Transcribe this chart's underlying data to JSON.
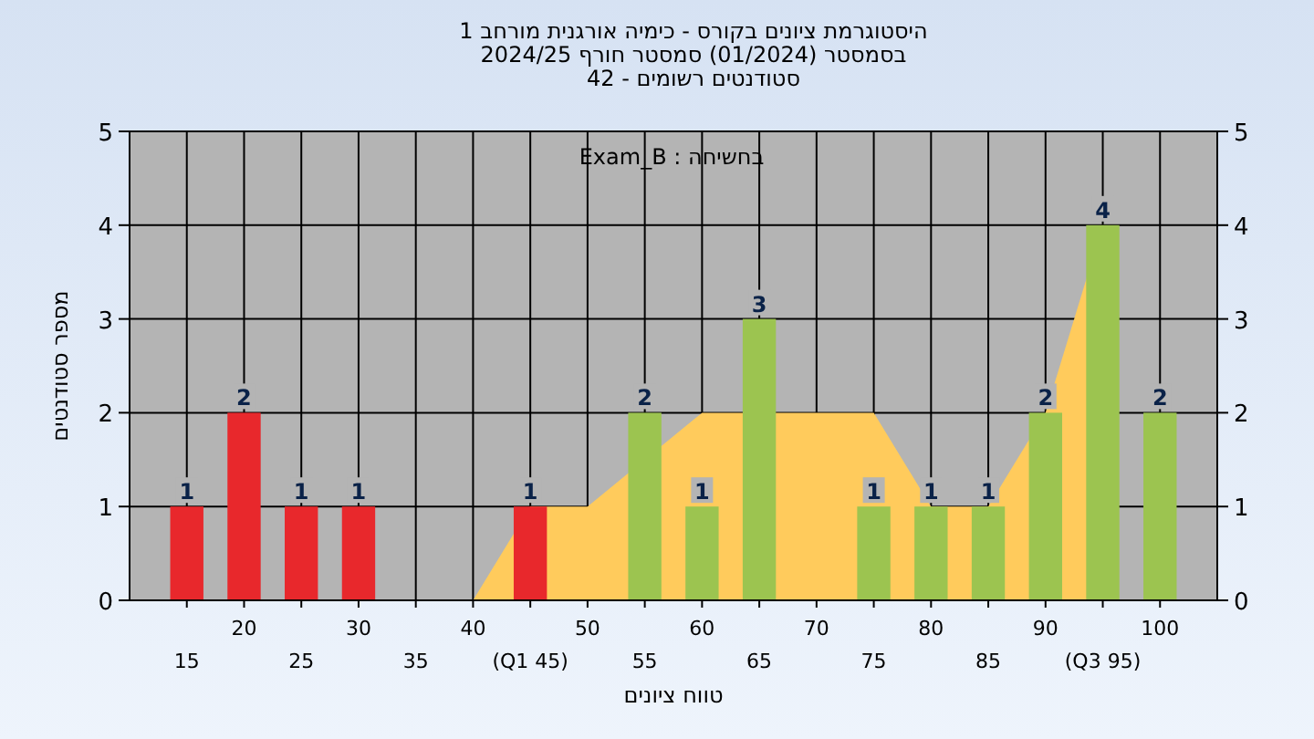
{
  "chart_data": {
    "type": "bar",
    "title": "היסטוגרמת ציונים בקורס - כימיה אורגנית מורחב 1",
    "subtitle": "בסמסטר  (01/2024)  סמסטר חורף 2024/25\nסטודנטים רשומים - 42",
    "xlabel": "טווח ציונים",
    "ylabel": "מספר סטודנטים",
    "annotations": [
      "בחשיחה : Exam_B"
    ],
    "categories": [
      "15",
      "20",
      "25",
      "30",
      "35",
      "40",
      "(Q1 45)",
      "50",
      "55",
      "60",
      "65",
      "70",
      "75",
      "80",
      "85",
      "90",
      "(Q3 95)",
      "100"
    ],
    "series": [
      {
        "type": "area",
        "color": "#ffcb5c",
        "values": [
          null,
          null,
          null,
          null,
          null,
          0,
          1,
          1,
          null,
          2,
          null,
          2,
          2,
          1,
          1,
          2,
          4,
          null
        ]
      },
      {
        "color": "#e8282c",
        "values": [
          1,
          2,
          1,
          1,
          null,
          null,
          1,
          null,
          null,
          null,
          null,
          null,
          null,
          null,
          null,
          null,
          null,
          null
        ],
        "value_labels": [
          "1",
          "2",
          "1",
          "1",
          null,
          null,
          "1",
          null,
          null,
          null,
          null,
          null,
          null,
          null,
          null,
          null,
          null,
          null
        ]
      },
      {
        "color": "#9cc450",
        "values": [
          null,
          null,
          null,
          null,
          null,
          null,
          null,
          null,
          2,
          1,
          3,
          null,
          1,
          1,
          1,
          2,
          4,
          2
        ],
        "value_labels": [
          null,
          null,
          null,
          null,
          null,
          null,
          null,
          null,
          "2",
          "1",
          "3",
          null,
          "1",
          "1",
          "1",
          "2",
          "4",
          "2"
        ]
      }
    ],
    "ylim": [
      0,
      5
    ],
    "yticks": [
      0,
      1,
      2,
      3,
      4,
      5
    ],
    "y2lim": [
      0,
      5
    ],
    "y2ticks": [
      0,
      1,
      2,
      3,
      4,
      5
    ],
    "grid": true
  }
}
